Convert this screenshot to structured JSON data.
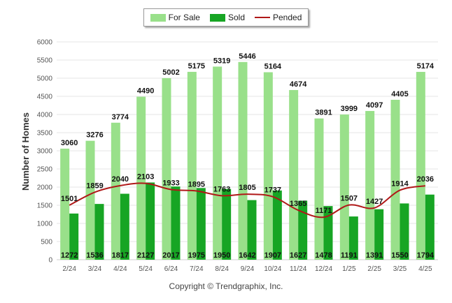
{
  "legend": {
    "for_sale": "For Sale",
    "sold": "Sold",
    "pended": "Pended"
  },
  "colors": {
    "for_sale": "#99e08a",
    "sold": "#17a524",
    "pended": "#b01818",
    "grid": "#e6e6e6",
    "axis_text": "#555555"
  },
  "credit": "Copyright © Trendgraphix, Inc.",
  "chart_data": {
    "type": "bar",
    "title": "",
    "xlabel": "",
    "ylabel": "Number of Homes",
    "ylim": [
      0,
      6000
    ],
    "yticks": [
      0,
      500,
      1000,
      1500,
      2000,
      2500,
      3000,
      3500,
      4000,
      4500,
      5000,
      5500,
      6000
    ],
    "grid": true,
    "legend_position": "top-center",
    "categories": [
      "2/24",
      "3/24",
      "4/24",
      "5/24",
      "6/24",
      "7/24",
      "8/24",
      "9/24",
      "10/24",
      "11/24",
      "12/24",
      "1/25",
      "2/25",
      "3/25",
      "4/25"
    ],
    "series": [
      {
        "name": "For Sale",
        "type": "bar",
        "values": [
          3060,
          3276,
          3774,
          4490,
          5002,
          5175,
          5319,
          5446,
          5164,
          4674,
          3891,
          3999,
          4097,
          4405,
          5174
        ]
      },
      {
        "name": "Sold",
        "type": "bar",
        "values": [
          1272,
          1536,
          1817,
          2127,
          2017,
          1975,
          1950,
          1642,
          1907,
          1627,
          1478,
          1191,
          1391,
          1550,
          1794
        ]
      },
      {
        "name": "Pended",
        "type": "line",
        "values": [
          1501,
          1859,
          2040,
          2103,
          1933,
          1895,
          1763,
          1805,
          1737,
          1365,
          1171,
          1507,
          1427,
          1914,
          2036
        ]
      }
    ]
  }
}
